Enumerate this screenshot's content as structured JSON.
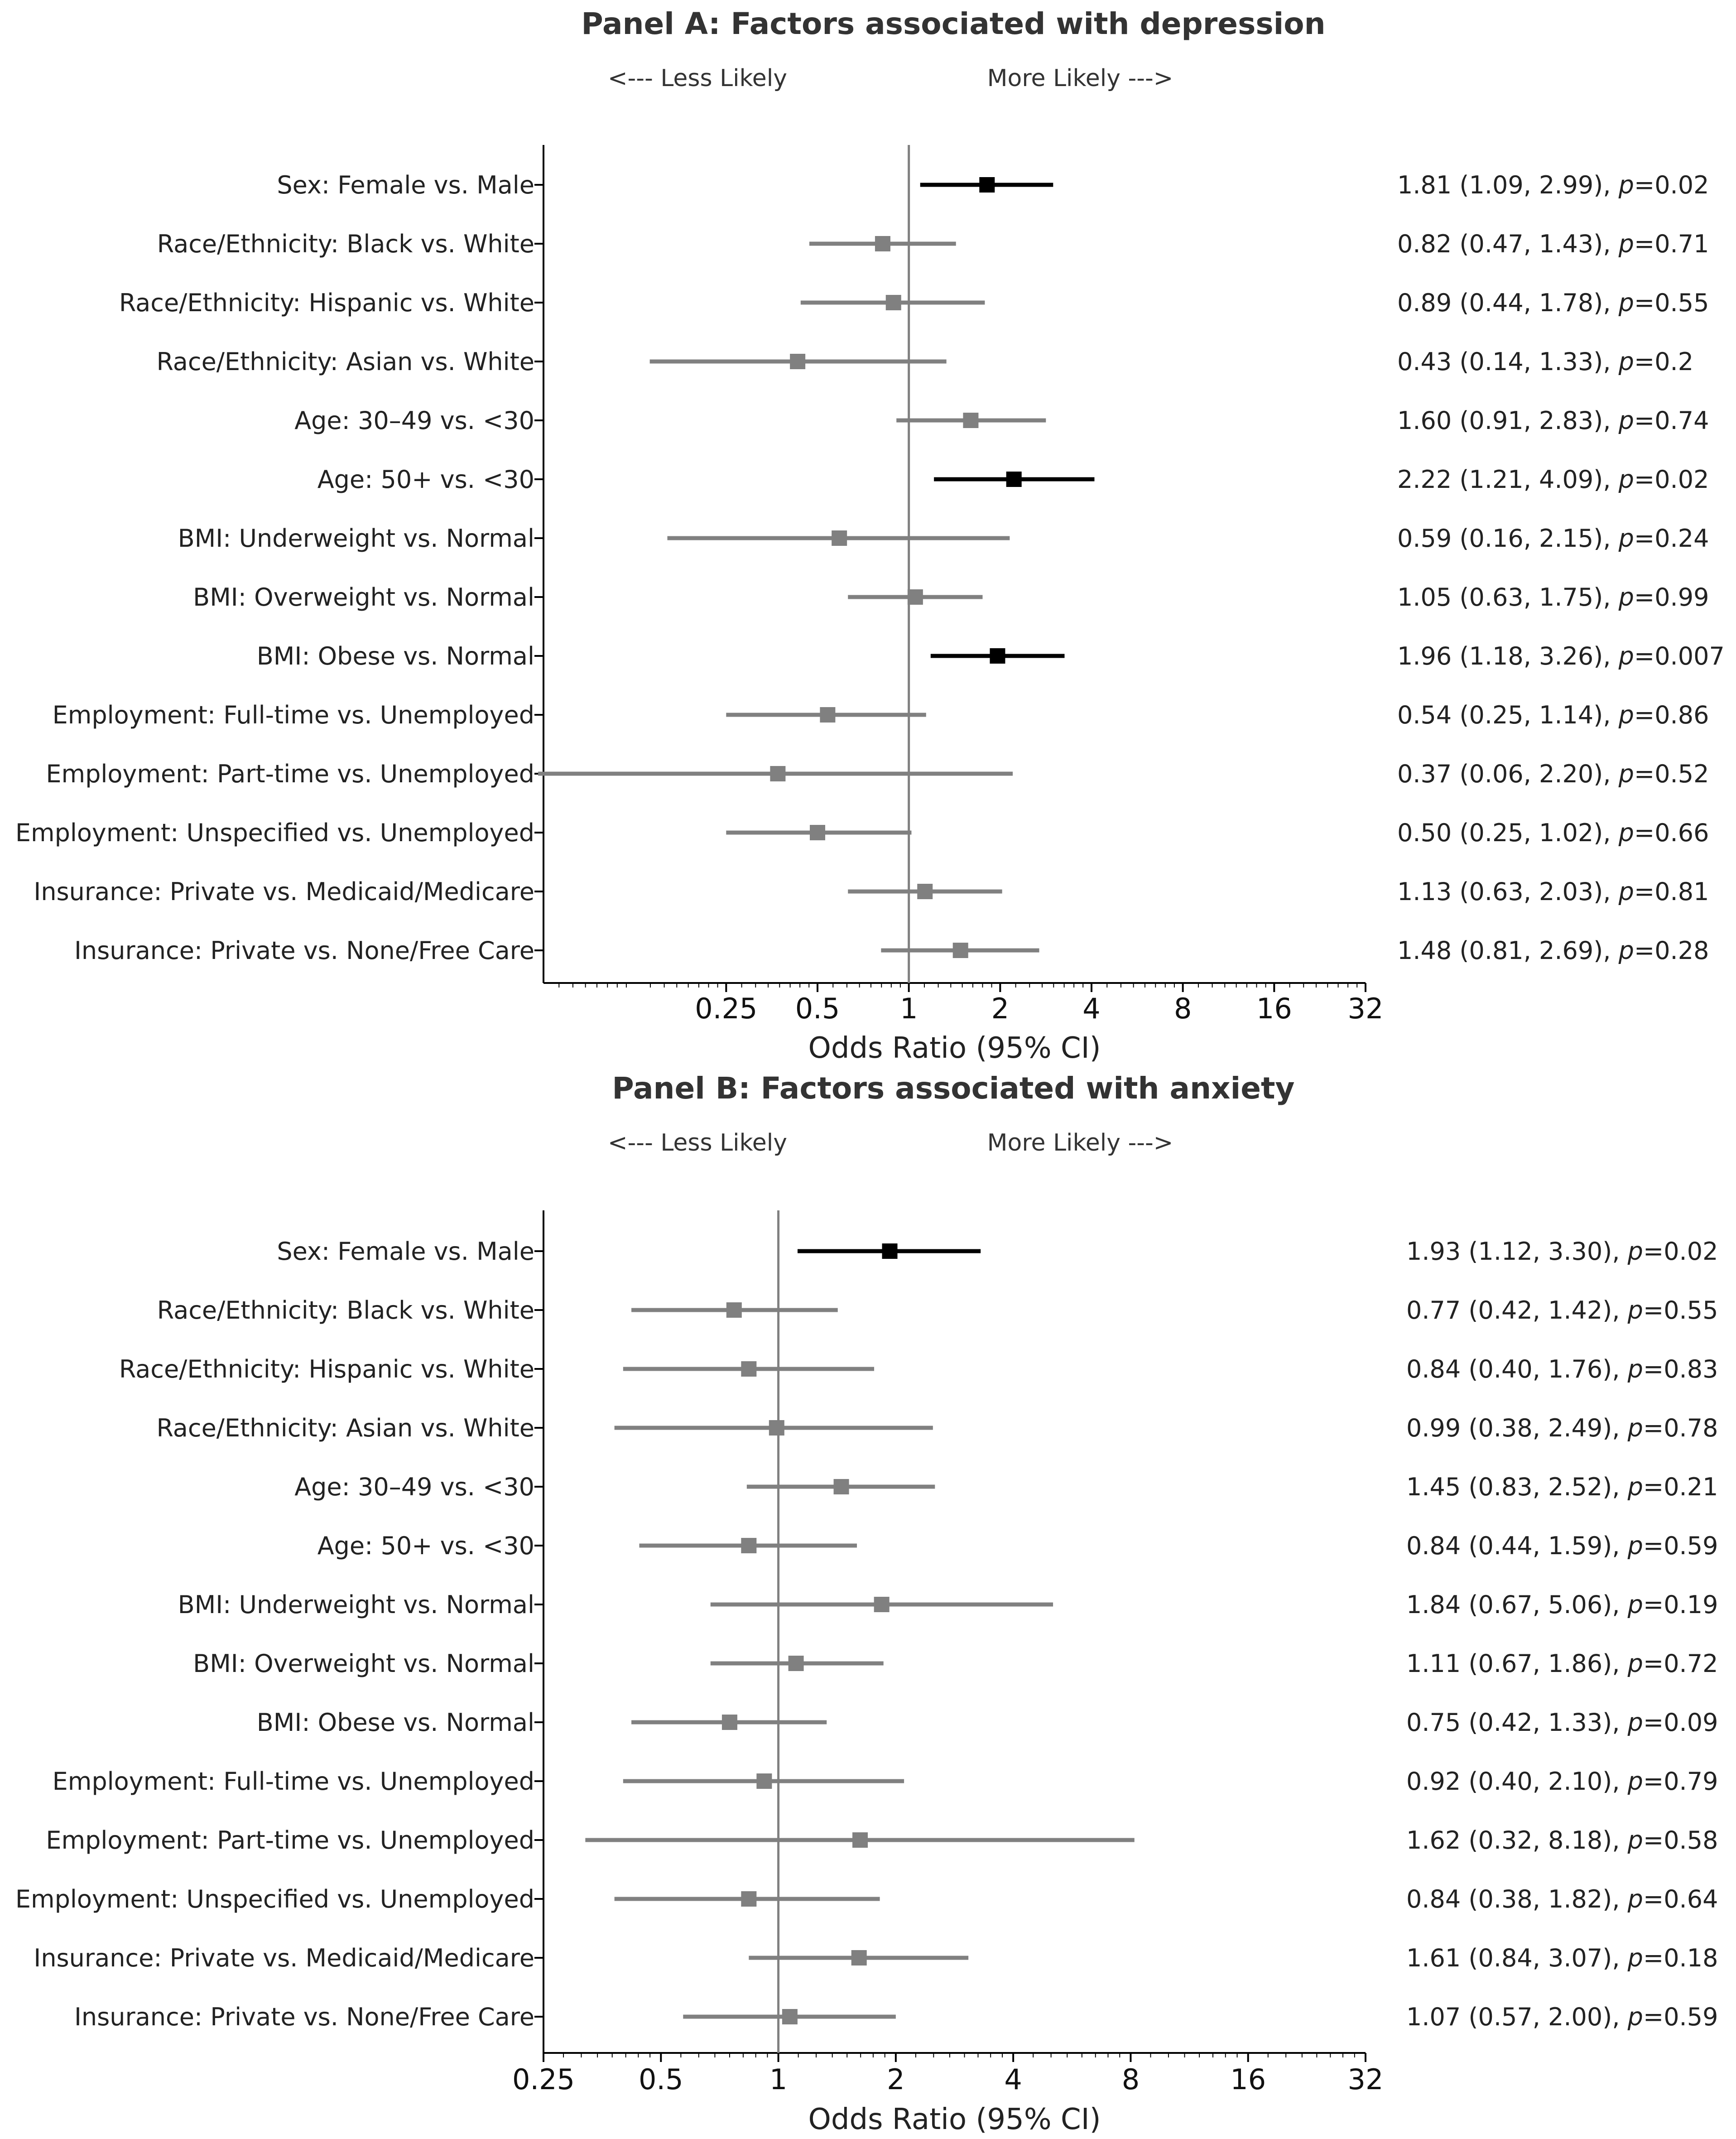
{
  "chart_data": [
    {
      "type": "forest",
      "title": "Panel A: Factors associated with depression",
      "direction_left": "<--- Less Likely",
      "direction_right": "More Likely --->",
      "xlabel": "Odds Ratio (95% CI)",
      "xscale": "log2",
      "xlim": [
        0.0625,
        32
      ],
      "xticks": [
        0.25,
        0.5,
        1,
        2,
        4,
        8,
        16,
        32
      ],
      "xtick_labels": [
        "0.25",
        "0.5",
        "1",
        "2",
        "4",
        "8",
        "16",
        "32"
      ],
      "reference_line": 1,
      "rows": [
        {
          "label": "Sex: Female vs. Male",
          "or": 1.81,
          "lo": 1.09,
          "hi": 2.99,
          "p": "0.02",
          "ci_text": "1.81 (1.09, 2.99), ",
          "significant": true
        },
        {
          "label": "Race/Ethnicity: Black vs. White",
          "or": 0.82,
          "lo": 0.47,
          "hi": 1.43,
          "p": "0.71",
          "ci_text": "0.82 (0.47, 1.43), ",
          "significant": false
        },
        {
          "label": "Race/Ethnicity: Hispanic vs. White",
          "or": 0.89,
          "lo": 0.44,
          "hi": 1.78,
          "p": "0.55",
          "ci_text": "0.89 (0.44, 1.78), ",
          "significant": false
        },
        {
          "label": "Race/Ethnicity: Asian vs. White",
          "or": 0.43,
          "lo": 0.14,
          "hi": 1.33,
          "p": "0.2",
          "ci_text": "0.43 (0.14, 1.33), ",
          "significant": false
        },
        {
          "label": "Age: 30–49 vs. <30",
          "or": 1.6,
          "lo": 0.91,
          "hi": 2.83,
          "p": "0.74",
          "ci_text": "1.60 (0.91, 2.83), ",
          "significant": false
        },
        {
          "label": "Age: 50+ vs. <30",
          "or": 2.22,
          "lo": 1.21,
          "hi": 4.09,
          "p": "0.02",
          "ci_text": "2.22 (1.21, 4.09), ",
          "significant": true
        },
        {
          "label": "BMI: Underweight vs. Normal",
          "or": 0.59,
          "lo": 0.16,
          "hi": 2.15,
          "p": "0.24",
          "ci_text": "0.59 (0.16, 2.15), ",
          "significant": false
        },
        {
          "label": "BMI: Overweight vs. Normal",
          "or": 1.05,
          "lo": 0.63,
          "hi": 1.75,
          "p": "0.99",
          "ci_text": "1.05 (0.63, 1.75), ",
          "significant": false
        },
        {
          "label": "BMI: Obese vs. Normal",
          "or": 1.96,
          "lo": 1.18,
          "hi": 3.26,
          "p": "0.007",
          "ci_text": "1.96 (1.18, 3.26), ",
          "significant": true
        },
        {
          "label": "Employment: Full-time vs. Unemployed",
          "or": 0.54,
          "lo": 0.25,
          "hi": 1.14,
          "p": "0.86",
          "ci_text": "0.54 (0.25, 1.14), ",
          "significant": false
        },
        {
          "label": "Employment: Part-time vs. Unemployed",
          "or": 0.37,
          "lo": 0.06,
          "hi": 2.2,
          "p": "0.52",
          "ci_text": "0.37 (0.06, 2.20), ",
          "significant": false
        },
        {
          "label": "Employment: Unspecified vs. Unemployed",
          "or": 0.5,
          "lo": 0.25,
          "hi": 1.02,
          "p": "0.66",
          "ci_text": "0.50 (0.25, 1.02), ",
          "significant": false
        },
        {
          "label": "Insurance: Private vs. Medicaid/Medicare",
          "or": 1.13,
          "lo": 0.63,
          "hi": 2.03,
          "p": "0.81",
          "ci_text": "1.13 (0.63, 2.03), ",
          "significant": false
        },
        {
          "label": "Insurance: Private vs. None/Free Care",
          "or": 1.48,
          "lo": 0.81,
          "hi": 2.69,
          "p": "0.28",
          "ci_text": "1.48 (0.81, 2.69), ",
          "significant": false
        }
      ]
    },
    {
      "type": "forest",
      "title": "Panel B: Factors associated with anxiety",
      "direction_left": "<--- Less Likely",
      "direction_right": "More Likely --->",
      "xlabel": "Odds Ratio (95% CI)",
      "xscale": "log2",
      "xlim": [
        0.25,
        32
      ],
      "xticks": [
        0.25,
        0.5,
        1,
        2,
        4,
        8,
        16,
        32
      ],
      "xtick_labels": [
        "0.25",
        "0.5",
        "1",
        "2",
        "4",
        "8",
        "16",
        "32"
      ],
      "reference_line": 1,
      "rows": [
        {
          "label": "Sex: Female vs. Male",
          "or": 1.93,
          "lo": 1.12,
          "hi": 3.3,
          "p": "0.02",
          "ci_text": "1.93 (1.12, 3.30), ",
          "significant": true
        },
        {
          "label": "Race/Ethnicity: Black vs. White",
          "or": 0.77,
          "lo": 0.42,
          "hi": 1.42,
          "p": "0.55",
          "ci_text": "0.77 (0.42, 1.42), ",
          "significant": false
        },
        {
          "label": "Race/Ethnicity: Hispanic vs. White",
          "or": 0.84,
          "lo": 0.4,
          "hi": 1.76,
          "p": "0.83",
          "ci_text": "0.84 (0.40, 1.76), ",
          "significant": false
        },
        {
          "label": "Race/Ethnicity: Asian vs. White",
          "or": 0.99,
          "lo": 0.38,
          "hi": 2.49,
          "p": "0.78",
          "ci_text": "0.99 (0.38, 2.49), ",
          "significant": false
        },
        {
          "label": "Age: 30–49 vs. <30",
          "or": 1.45,
          "lo": 0.83,
          "hi": 2.52,
          "p": "0.21",
          "ci_text": "1.45 (0.83, 2.52), ",
          "significant": false
        },
        {
          "label": "Age: 50+ vs. <30",
          "or": 0.84,
          "lo": 0.44,
          "hi": 1.59,
          "p": "0.59",
          "ci_text": "0.84 (0.44, 1.59), ",
          "significant": false
        },
        {
          "label": "BMI: Underweight vs. Normal",
          "or": 1.84,
          "lo": 0.67,
          "hi": 5.06,
          "p": "0.19",
          "ci_text": "1.84 (0.67, 5.06), ",
          "significant": false
        },
        {
          "label": "BMI: Overweight vs. Normal",
          "or": 1.11,
          "lo": 0.67,
          "hi": 1.86,
          "p": "0.72",
          "ci_text": "1.11 (0.67, 1.86), ",
          "significant": false
        },
        {
          "label": "BMI: Obese vs. Normal",
          "or": 0.75,
          "lo": 0.42,
          "hi": 1.33,
          "p": "0.09",
          "ci_text": "0.75 (0.42, 1.33), ",
          "significant": false
        },
        {
          "label": "Employment: Full-time vs. Unemployed",
          "or": 0.92,
          "lo": 0.4,
          "hi": 2.1,
          "p": "0.79",
          "ci_text": "0.92 (0.40, 2.10), ",
          "significant": false
        },
        {
          "label": "Employment: Part-time vs. Unemployed",
          "or": 1.62,
          "lo": 0.32,
          "hi": 8.18,
          "p": "0.58",
          "ci_text": "1.62 (0.32, 8.18), ",
          "significant": false
        },
        {
          "label": "Employment: Unspecified vs. Unemployed",
          "or": 0.84,
          "lo": 0.38,
          "hi": 1.82,
          "p": "0.64",
          "ci_text": "0.84 (0.38, 1.82), ",
          "significant": false
        },
        {
          "label": "Insurance: Private vs. Medicaid/Medicare",
          "or": 1.61,
          "lo": 0.84,
          "hi": 3.07,
          "p": "0.18",
          "ci_text": "1.61 (0.84, 3.07), ",
          "significant": false
        },
        {
          "label": "Insurance: Private vs. None/Free Care",
          "or": 1.07,
          "lo": 0.57,
          "hi": 2.0,
          "p": "0.59",
          "ci_text": "1.07 (0.57, 2.00), ",
          "significant": false
        }
      ]
    }
  ],
  "colors": {
    "significant": "#000000",
    "nonsignificant": "#808080",
    "reference_line": "#808080",
    "axis": "#000000"
  }
}
